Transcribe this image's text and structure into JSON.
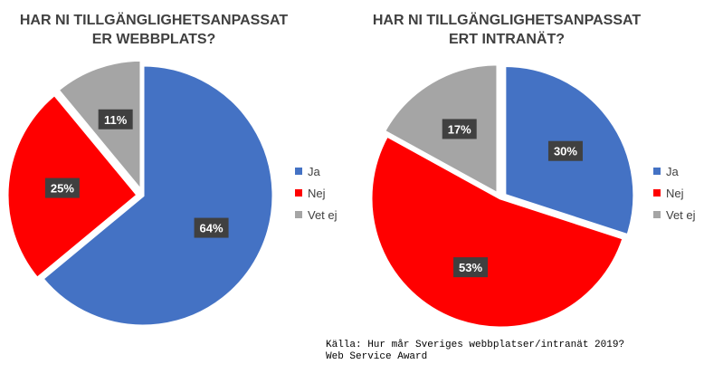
{
  "chart_data": [
    {
      "type": "pie",
      "title": "HAR NI TILLGÄNGLIGHETSANPASSAT\nER WEBBPLATS?",
      "categories": [
        "Ja",
        "Nej",
        "Vet ej"
      ],
      "values": [
        64,
        25,
        11
      ],
      "labels": [
        "64%",
        "25%",
        "11%"
      ],
      "colors": [
        "#4472c4",
        "#ff0000",
        "#a5a5a5"
      ],
      "legend": "right"
    },
    {
      "type": "pie",
      "title": "HAR NI TILLGÄNGLIGHETSANPASSAT\nERT INTRANÄT?",
      "categories": [
        "Ja",
        "Nej",
        "Vet ej"
      ],
      "values": [
        30,
        53,
        17
      ],
      "labels": [
        "30%",
        "53%",
        "17%"
      ],
      "colors": [
        "#4472c4",
        "#ff0000",
        "#a5a5a5"
      ],
      "legend": "right"
    }
  ],
  "source": "Källa: Hur mår Sveriges webbplatser/intranät 2019?\nWeb Service Award"
}
